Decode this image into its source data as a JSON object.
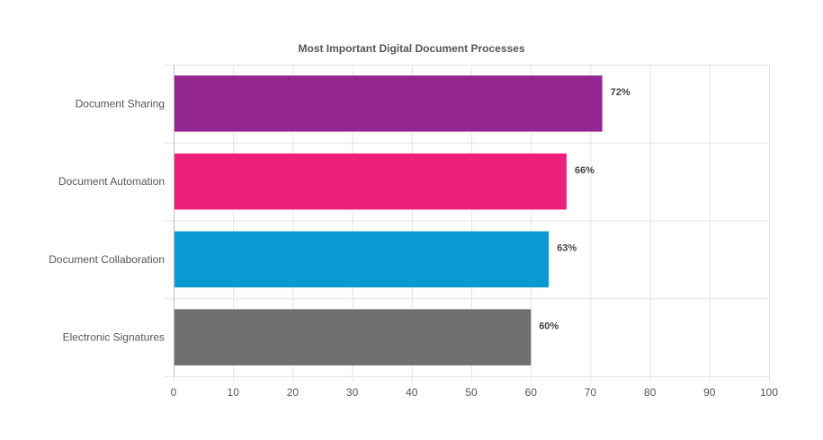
{
  "chart_data": {
    "type": "bar",
    "orientation": "horizontal",
    "title": "Most Important Digital Document Processes",
    "categories": [
      "Document Sharing",
      "Document Automation",
      "Document Collaboration",
      "Electronic Signatures"
    ],
    "values": [
      72,
      66,
      63,
      60
    ],
    "data_labels": [
      "72%",
      "66%",
      "63%",
      "60%"
    ],
    "colors": [
      "#93278f",
      "#ec1f7a",
      "#0a99d0",
      "#6f6f6f"
    ],
    "xlim": [
      0,
      100
    ],
    "x_ticks": [
      0,
      10,
      20,
      30,
      40,
      50,
      60,
      70,
      80,
      90,
      100
    ],
    "xlabel": "",
    "ylabel": "",
    "grid": true,
    "legend": "none"
  }
}
